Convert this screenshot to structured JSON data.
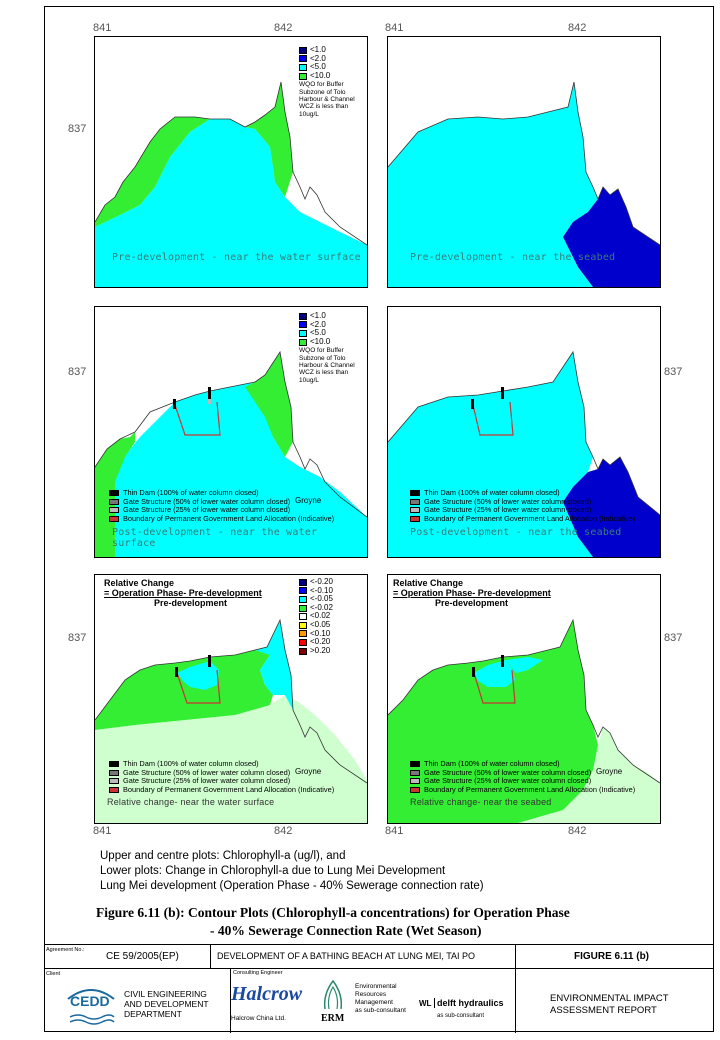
{
  "coords": {
    "x1": "841",
    "x2": "842",
    "y": "837"
  },
  "colors": {
    "cyan": "#00ffff",
    "green": "#33ee33",
    "blue": "#0000cc",
    "light_green": "#cfffcf",
    "red": "#cc3333"
  },
  "legend_concentration": {
    "items": [
      {
        "label": "<1.0",
        "color": "#000080"
      },
      {
        "label": "<2.0",
        "color": "#0000ff"
      },
      {
        "label": "<5.0",
        "color": "#00ffff"
      },
      {
        "label": "<10.0",
        "color": "#33ee33"
      }
    ],
    "note": "WQO for Buffer Subzone of Tolo Harbour & Channel WCZ is less than 10ug/L"
  },
  "legend_change": {
    "items": [
      {
        "label": "<-0.20",
        "color": "#000080"
      },
      {
        "label": "<-0.10",
        "color": "#0000ff"
      },
      {
        "label": "<-0.05",
        "color": "#00ffff"
      },
      {
        "label": "<-0.02",
        "color": "#33ee33"
      },
      {
        "label": "<0.02",
        "color": "#ffffff"
      },
      {
        "label": "<0.05",
        "color": "#ffff00"
      },
      {
        "label": "<0.10",
        "color": "#ff9900"
      },
      {
        "label": "<0.20",
        "color": "#ff0000"
      },
      {
        "label": ">0.20",
        "color": "#800000"
      }
    ]
  },
  "structure_legend": {
    "items": [
      {
        "label": "Thin Dam (100% of water column closed)",
        "color": "#000000"
      },
      {
        "label": "Gate Structure (50% of lower water column closed)",
        "color": "#777777"
      },
      {
        "label": "Gate Structure (25% of lower water column closed)",
        "color": "#bbbbbb"
      },
      {
        "label": "Boundary of Permanent Government Land Allocation (Indicative)",
        "color": "#cc3333"
      }
    ],
    "groyne": "Groyne"
  },
  "panels": {
    "p1": "Pre-development - near the water surface",
    "p2": "Pre-development - near the seabed",
    "p3": "Post-development - near the water surface",
    "p4": "Post-development - near the seabed",
    "p5": "Relative change- near the water surface",
    "p6": "Relative change- near the seabed"
  },
  "relative_change": {
    "line1": "Relative Change",
    "line2": "= Operation Phase- Pre-development",
    "line3": "Pre-development"
  },
  "description": [
    "Upper and centre plots: Chlorophyll-a (ug/l), and",
    "Lower plots: Change in Chlorophyll-a due to Lung Mei Development",
    "Lung Mei development (Operation Phase - 40% Sewerage connection rate)"
  ],
  "figure_caption": {
    "line1": "Figure 6.11 (b):  Contour Plots (Chlorophyll-a concentrations) for Operation Phase",
    "line2": "- 40% Sewerage Connection Rate (Wet Season)"
  },
  "title_block": {
    "agreement_label": "Agreement No.:",
    "agreement_no": "CE 59/2005(EP)",
    "project": "DEVELOPMENT OF A BATHING BEACH AT LUNG MEI, TAI PO",
    "figure": "FIGURE 6.11 (b)",
    "client_label": "Client",
    "cedd": "CEDD",
    "cedd_name1": "CIVIL ENGINEERING",
    "cedd_name2": "AND DEVELOPMENT",
    "cedd_name3": "DEPARTMENT",
    "consult_label": "Consulting Engineer",
    "halcrow": "Halcrow",
    "halcrow_sub": "Halcrow China Ltd.",
    "erm": "ERM",
    "erm_text1": "Environmental",
    "erm_text2": "Resources",
    "erm_text3": "Management",
    "erm_sub": "as sub-consultant",
    "wl": "WL",
    "delft": "delft hydraulics",
    "delft_sub": "as sub-consultant",
    "report1": "ENVIRONMENTAL IMPACT",
    "report2": "ASSESSMENT REPORT"
  }
}
